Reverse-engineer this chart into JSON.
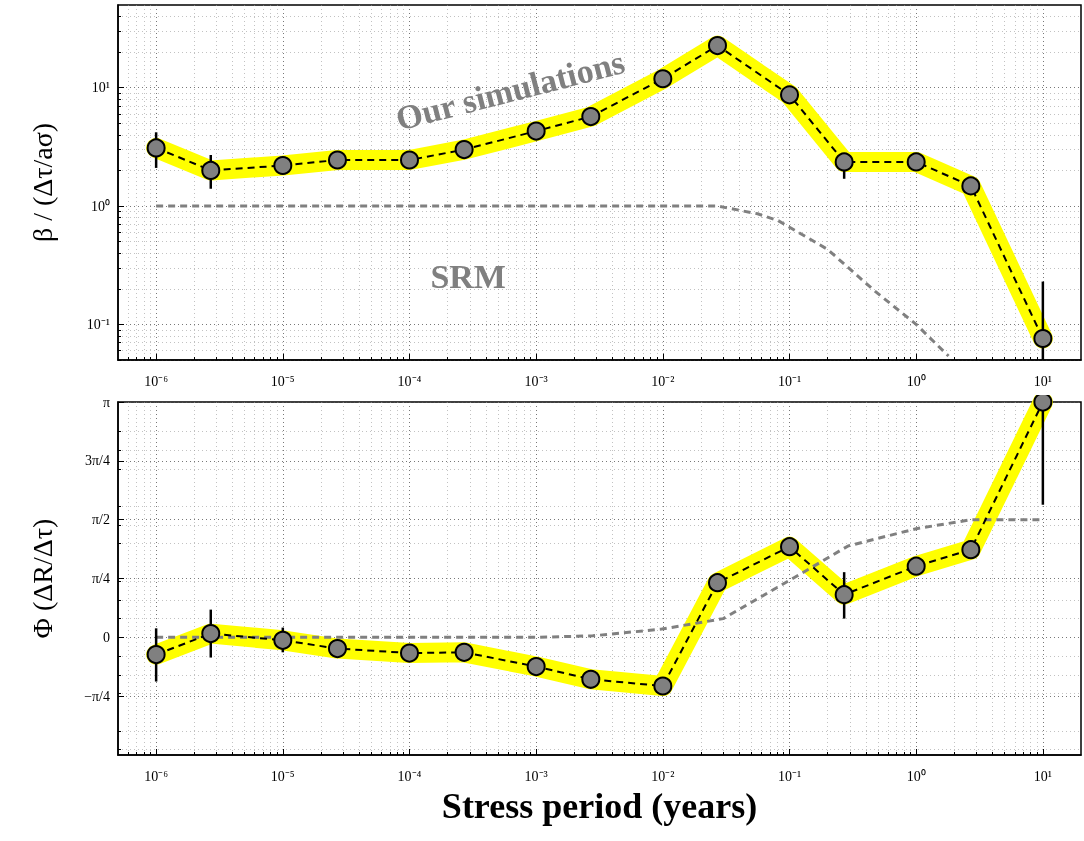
{
  "chart_data": [
    {
      "type": "line",
      "ylabel": "β / (Δτ/aσ)",
      "log": "xy",
      "grid": true,
      "xlim": [
        5e-07,
        20
      ],
      "xticks": [
        {
          "value": 1e-06,
          "label": "10⁻⁶"
        },
        {
          "value": 1e-05,
          "label": "10⁻⁵"
        },
        {
          "value": 0.0001,
          "label": "10⁻⁴"
        },
        {
          "value": 0.001,
          "label": "10⁻³"
        },
        {
          "value": 0.01,
          "label": "10⁻²"
        },
        {
          "value": 0.1,
          "label": "10⁻¹"
        },
        {
          "value": 1,
          "label": "10⁰"
        },
        {
          "value": 10,
          "label": "10¹"
        }
      ],
      "ylim": [
        0.05,
        50
      ],
      "yticks": [
        {
          "value": 0.1,
          "label": "10⁻¹"
        },
        {
          "value": 1,
          "label": "10⁰"
        },
        {
          "value": 10,
          "label": "10¹"
        }
      ],
      "series": [
        {
          "name": "Our simulations",
          "color": "#000000",
          "marker": "circle",
          "line_style": "dashed",
          "x": [
            1e-06,
            2.7e-06,
            1e-05,
            2.7e-05,
            0.0001,
            0.00027,
            0.001,
            0.0027,
            0.01,
            0.027,
            0.1,
            0.27,
            1,
            2.7,
            10
          ],
          "values": [
            3.1,
            2.0,
            2.2,
            2.45,
            2.45,
            3.0,
            4.3,
            5.7,
            11.9,
            22.7,
            8.7,
            2.36,
            2.36,
            1.48,
            0.076
          ],
          "errors": [
            [
              2.1,
              4.2
            ],
            [
              1.4,
              2.7
            ],
            null,
            null,
            null,
            null,
            null,
            null,
            null,
            null,
            null,
            [
              1.7,
              2.7
            ],
            null,
            null,
            [
              0.05,
              0.23
            ]
          ]
        },
        {
          "name": "SRM",
          "color": "#808080",
          "marker": "none",
          "line_style": "dashed",
          "x": [
            1e-06,
            0.001,
            0.027,
            0.056,
            0.082,
            0.2,
            0.475,
            1.0,
            1.8
          ],
          "values": [
            1,
            1,
            1,
            0.86,
            0.75,
            0.43,
            0.19,
            0.1,
            0.054
          ]
        }
      ]
    },
    {
      "type": "line",
      "xlabel": "Stress period (years)",
      "ylabel": "Φ (ΔR/Δτ)",
      "log": "x",
      "grid": true,
      "xlim": [
        5e-07,
        20
      ],
      "xticks": [
        {
          "value": 1e-06,
          "label": "10⁻⁶"
        },
        {
          "value": 1e-05,
          "label": "10⁻⁵"
        },
        {
          "value": 0.0001,
          "label": "10⁻⁴"
        },
        {
          "value": 0.001,
          "label": "10⁻³"
        },
        {
          "value": 0.01,
          "label": "10⁻²"
        },
        {
          "value": 0.1,
          "label": "10⁻¹"
        },
        {
          "value": 1,
          "label": "10⁰"
        },
        {
          "value": 10,
          "label": "10¹"
        }
      ],
      "ylim": [
        -1.5708,
        3.1416
      ],
      "yticks": [
        {
          "value": -0.7854,
          "label": "−π/4"
        },
        {
          "value": 0,
          "label": "0"
        },
        {
          "value": 0.7854,
          "label": "π/4"
        },
        {
          "value": 1.5708,
          "label": "π/2"
        },
        {
          "value": 2.3562,
          "label": "3π/4"
        },
        {
          "value": 3.1416,
          "label": "π"
        }
      ],
      "series": [
        {
          "color": "#000000",
          "marker": "circle",
          "line_style": "dashed",
          "x": [
            1e-06,
            2.7e-06,
            1e-05,
            2.7e-05,
            0.0001,
            0.00027,
            0.001,
            0.0027,
            0.01,
            0.027,
            0.1,
            0.27,
            1,
            2.7,
            10
          ],
          "values": [
            -0.23,
            0.05,
            -0.04,
            -0.15,
            -0.21,
            -0.2,
            -0.39,
            -0.56,
            -0.65,
            0.73,
            1.21,
            0.57,
            0.95,
            1.17,
            3.14
          ],
          "errors": [
            [
              -0.59,
              0.12
            ],
            [
              -0.27,
              0.37
            ],
            [
              -0.2,
              0.13
            ],
            null,
            null,
            null,
            null,
            null,
            null,
            null,
            null,
            [
              0.25,
              0.87
            ],
            null,
            null,
            [
              1.77,
              3.1416
            ]
          ]
        },
        {
          "color": "#808080",
          "marker": "none",
          "line_style": "dashed",
          "x": [
            1e-06,
            0.001,
            0.0028,
            0.0098,
            0.03,
            0.1,
            0.29,
            1.0,
            2.7,
            10
          ],
          "values": [
            0,
            0,
            0.02,
            0.11,
            0.25,
            0.76,
            1.22,
            1.45,
            1.57,
            1.57
          ]
        }
      ]
    }
  ]
}
